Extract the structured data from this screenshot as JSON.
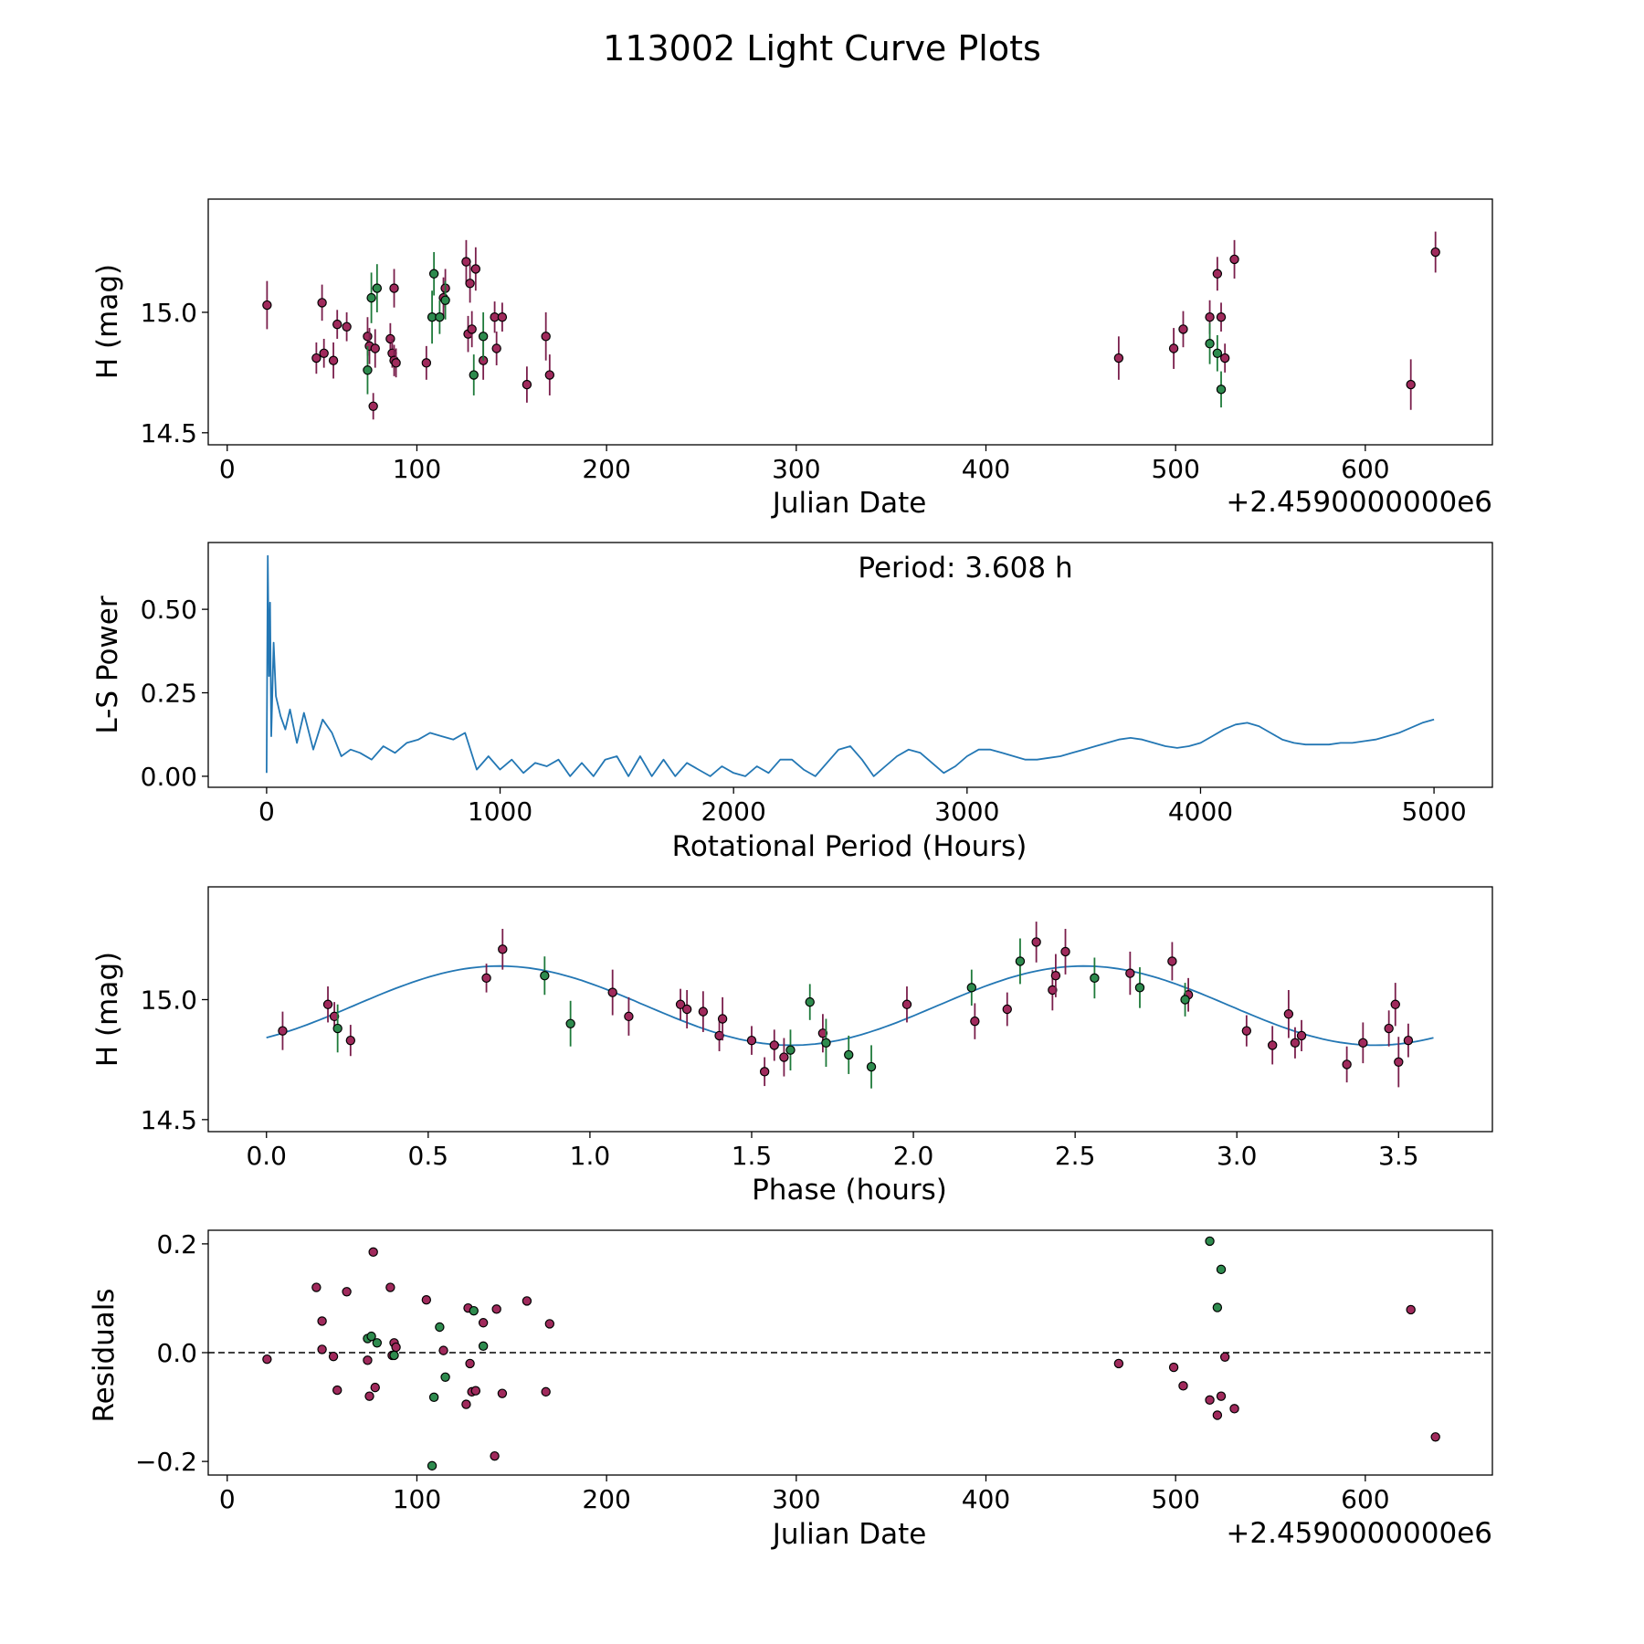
{
  "figure": {
    "title": "113002 Light Curve Plots"
  },
  "colors": {
    "red": "#7a1f4c",
    "red_fill": "#a02a5c",
    "green": "#1e7a3a",
    "green_fill": "#2e8b4e",
    "line": "#2377b4"
  },
  "chart_data": [
    {
      "id": "lightcurve",
      "type": "scatter",
      "xlabel": "Julian Date",
      "ylabel": "H (mag)",
      "offset_text": "+2.4590000000e6",
      "xlim": [
        -10,
        667
      ],
      "ylim": [
        14.45,
        15.47
      ],
      "xticks": [
        0,
        100,
        200,
        300,
        400,
        500,
        600
      ],
      "xtick_labels": [
        "0",
        "100",
        "200",
        "300",
        "400",
        "500",
        "600"
      ],
      "yticks": [
        14.5,
        15.0
      ],
      "ytick_labels": [
        "14.5",
        "15.0"
      ],
      "series": [
        {
          "name": "red",
          "points": [
            [
              21,
              15.03,
              0.2
            ],
            [
              47,
              14.81,
              0.13
            ],
            [
              50,
              15.04,
              0.15
            ],
            [
              51,
              14.83,
              0.12
            ],
            [
              56,
              14.8,
              0.15
            ],
            [
              58,
              14.95,
              0.12
            ],
            [
              63,
              14.94,
              0.12
            ],
            [
              74,
              14.9,
              0.16
            ],
            [
              75,
              14.86,
              0.15
            ],
            [
              77,
              14.61,
              0.11
            ],
            [
              78,
              14.85,
              0.16
            ],
            [
              86,
              14.89,
              0.13
            ],
            [
              87,
              14.83,
              0.12
            ],
            [
              88,
              14.8,
              0.13
            ],
            [
              88,
              15.1,
              0.16
            ],
            [
              89,
              14.79,
              0.12
            ],
            [
              105,
              14.79,
              0.14
            ],
            [
              114,
              15.06,
              0.17
            ],
            [
              115,
              15.1,
              0.16
            ],
            [
              126,
              15.21,
              0.18
            ],
            [
              127,
              14.91,
              0.15
            ],
            [
              128,
              15.12,
              0.16
            ],
            [
              129,
              14.93,
              0.15
            ],
            [
              131,
              15.18,
              0.18
            ],
            [
              135,
              14.8,
              0.16
            ],
            [
              141,
              14.98,
              0.13
            ],
            [
              142,
              14.85,
              0.14
            ],
            [
              145,
              14.98,
              0.12
            ],
            [
              158,
              14.7,
              0.15
            ],
            [
              168,
              14.9,
              0.2
            ],
            [
              170,
              14.74,
              0.17
            ],
            [
              470,
              14.81,
              0.18
            ],
            [
              499,
              14.85,
              0.17
            ],
            [
              504,
              14.93,
              0.15
            ],
            [
              518,
              14.98,
              0.14
            ],
            [
              522,
              15.16,
              0.14
            ],
            [
              524,
              14.98,
              0.12
            ],
            [
              526,
              14.81,
              0.12
            ],
            [
              531,
              15.22,
              0.16
            ],
            [
              624,
              14.7,
              0.21
            ],
            [
              637,
              15.25,
              0.17
            ]
          ]
        },
        {
          "name": "green",
          "points": [
            [
              74,
              14.76,
              0.2
            ],
            [
              76,
              15.06,
              0.21
            ],
            [
              79,
              15.1,
              0.2
            ],
            [
              108,
              14.98,
              0.22
            ],
            [
              109,
              15.16,
              0.18
            ],
            [
              112,
              14.98,
              0.14
            ],
            [
              115,
              15.05,
              0.16
            ],
            [
              130,
              14.74,
              0.17
            ],
            [
              135,
              14.9,
              0.2
            ],
            [
              518,
              14.87,
              0.17
            ],
            [
              522,
              14.83,
              0.15
            ],
            [
              524,
              14.68,
              0.15
            ]
          ]
        }
      ]
    },
    {
      "id": "periodogram",
      "type": "line",
      "xlabel": "Rotational Period (Hours)",
      "ylabel": "L-S Power",
      "annotation": "Period: 3.608 h",
      "xlim": [
        -250,
        5250
      ],
      "ylim": [
        -0.033,
        0.7
      ],
      "xticks": [
        0,
        1000,
        2000,
        3000,
        4000,
        5000
      ],
      "xtick_labels": [
        "0",
        "1000",
        "2000",
        "3000",
        "4000",
        "5000"
      ],
      "yticks": [
        0.0,
        0.25,
        0.5
      ],
      "ytick_labels": [
        "0.00",
        "0.25",
        "0.50"
      ],
      "x": [
        0,
        5,
        10,
        15,
        20,
        30,
        40,
        60,
        80,
        100,
        130,
        160,
        200,
        240,
        280,
        320,
        360,
        400,
        450,
        500,
        550,
        600,
        650,
        700,
        750,
        800,
        850,
        900,
        950,
        1000,
        1050,
        1100,
        1150,
        1200,
        1250,
        1300,
        1350,
        1400,
        1450,
        1500,
        1550,
        1600,
        1650,
        1700,
        1750,
        1800,
        1850,
        1900,
        1950,
        2000,
        2050,
        2100,
        2150,
        2200,
        2250,
        2300,
        2350,
        2400,
        2450,
        2500,
        2550,
        2600,
        2650,
        2700,
        2750,
        2800,
        2850,
        2900,
        2950,
        3000,
        3050,
        3100,
        3150,
        3200,
        3250,
        3300,
        3350,
        3400,
        3450,
        3500,
        3550,
        3600,
        3650,
        3700,
        3750,
        3800,
        3850,
        3900,
        3950,
        4000,
        4050,
        4100,
        4150,
        4200,
        4250,
        4300,
        4350,
        4400,
        4450,
        4500,
        4550,
        4600,
        4650,
        4700,
        4750,
        4800,
        4850,
        4900,
        4950,
        5000
      ],
      "values": [
        0.01,
        0.66,
        0.3,
        0.52,
        0.12,
        0.4,
        0.24,
        0.18,
        0.14,
        0.2,
        0.1,
        0.19,
        0.08,
        0.17,
        0.13,
        0.06,
        0.08,
        0.07,
        0.05,
        0.09,
        0.07,
        0.1,
        0.11,
        0.13,
        0.12,
        0.11,
        0.13,
        0.02,
        0.06,
        0.02,
        0.05,
        0.01,
        0.04,
        0.03,
        0.05,
        0.0,
        0.04,
        0.0,
        0.05,
        0.06,
        0.0,
        0.06,
        0.0,
        0.05,
        0.0,
        0.04,
        0.02,
        0.0,
        0.03,
        0.01,
        0.0,
        0.03,
        0.01,
        0.05,
        0.05,
        0.02,
        0.0,
        0.04,
        0.08,
        0.09,
        0.05,
        0.0,
        0.03,
        0.06,
        0.08,
        0.07,
        0.04,
        0.01,
        0.03,
        0.06,
        0.08,
        0.08,
        0.07,
        0.06,
        0.05,
        0.05,
        0.055,
        0.06,
        0.07,
        0.08,
        0.09,
        0.1,
        0.11,
        0.115,
        0.11,
        0.1,
        0.09,
        0.085,
        0.09,
        0.1,
        0.12,
        0.14,
        0.155,
        0.16,
        0.15,
        0.13,
        0.11,
        0.1,
        0.095,
        0.095,
        0.095,
        0.1,
        0.1,
        0.105,
        0.11,
        0.12,
        0.13,
        0.145,
        0.16,
        0.17
      ]
    },
    {
      "id": "phased",
      "type": "scatter",
      "xlabel": "Phase (hours)",
      "ylabel": "H (mag)",
      "xlim": [
        -0.18,
        3.79
      ],
      "ylim": [
        14.45,
        15.47
      ],
      "xticks": [
        0.0,
        0.5,
        1.0,
        1.5,
        2.0,
        2.5,
        3.0,
        3.5
      ],
      "xtick_labels": [
        "0.0",
        "0.5",
        "1.0",
        "1.5",
        "2.0",
        "2.5",
        "3.0",
        "3.5"
      ],
      "yticks": [
        14.5,
        15.0
      ],
      "ytick_labels": [
        "14.5",
        "15.0"
      ],
      "fit": {
        "name": "model",
        "mean": 14.975,
        "amplitude": 0.165,
        "phase0": 0.27,
        "period_x": 1.805,
        "x_range": [
          0,
          3.608
        ]
      },
      "series": [
        {
          "name": "red",
          "points": [
            [
              0.05,
              14.87,
              0.16
            ],
            [
              0.19,
              14.98,
              0.15
            ],
            [
              0.21,
              14.93,
              0.12
            ],
            [
              0.26,
              14.83,
              0.13
            ],
            [
              0.68,
              15.09,
              0.12
            ],
            [
              0.73,
              15.21,
              0.17
            ],
            [
              1.07,
              15.03,
              0.19
            ],
            [
              1.12,
              14.93,
              0.16
            ],
            [
              1.28,
              14.98,
              0.13
            ],
            [
              1.3,
              14.96,
              0.16
            ],
            [
              1.35,
              14.95,
              0.17
            ],
            [
              1.4,
              14.85,
              0.13
            ],
            [
              1.41,
              14.92,
              0.18
            ],
            [
              1.5,
              14.83,
              0.12
            ],
            [
              1.54,
              14.7,
              0.12
            ],
            [
              1.57,
              14.81,
              0.13
            ],
            [
              1.6,
              14.76,
              0.16
            ],
            [
              1.72,
              14.86,
              0.16
            ],
            [
              1.98,
              14.98,
              0.15
            ],
            [
              2.19,
              14.91,
              0.15
            ],
            [
              2.29,
              14.96,
              0.14
            ],
            [
              2.38,
              15.24,
              0.17
            ],
            [
              2.43,
              15.04,
              0.17
            ],
            [
              2.44,
              15.1,
              0.18
            ],
            [
              2.47,
              15.2,
              0.19
            ],
            [
              2.67,
              15.11,
              0.18
            ],
            [
              2.8,
              15.16,
              0.16
            ],
            [
              2.85,
              15.02,
              0.14
            ],
            [
              3.03,
              14.87,
              0.13
            ],
            [
              3.11,
              14.81,
              0.16
            ],
            [
              3.16,
              14.94,
              0.2
            ],
            [
              3.18,
              14.82,
              0.13
            ],
            [
              3.2,
              14.85,
              0.13
            ],
            [
              3.34,
              14.73,
              0.15
            ],
            [
              3.39,
              14.82,
              0.17
            ],
            [
              3.47,
              14.88,
              0.15
            ],
            [
              3.49,
              14.98,
              0.18
            ],
            [
              3.5,
              14.74,
              0.21
            ],
            [
              3.53,
              14.83,
              0.14
            ]
          ]
        },
        {
          "name": "green",
          "points": [
            [
              0.22,
              14.88,
              0.2
            ],
            [
              0.86,
              15.1,
              0.16
            ],
            [
              0.94,
              14.9,
              0.19
            ],
            [
              1.62,
              14.79,
              0.17
            ],
            [
              1.68,
              14.99,
              0.15
            ],
            [
              1.73,
              14.82,
              0.2
            ],
            [
              1.8,
              14.77,
              0.16
            ],
            [
              1.87,
              14.72,
              0.18
            ],
            [
              2.18,
              15.05,
              0.15
            ],
            [
              2.33,
              15.16,
              0.19
            ],
            [
              2.56,
              15.09,
              0.17
            ],
            [
              2.7,
              15.05,
              0.17
            ],
            [
              2.84,
              15.0,
              0.14
            ]
          ]
        }
      ]
    },
    {
      "id": "residuals",
      "type": "scatter",
      "xlabel": "Julian Date",
      "ylabel": "Residuals",
      "offset_text": "+2.4590000000e6",
      "xlim": [
        -10,
        667
      ],
      "ylim": [
        -0.225,
        0.225
      ],
      "xticks": [
        0,
        100,
        200,
        300,
        400,
        500,
        600
      ],
      "xtick_labels": [
        "0",
        "100",
        "200",
        "300",
        "400",
        "500",
        "600"
      ],
      "yticks": [
        -0.2,
        0.0,
        0.2
      ],
      "ytick_labels": [
        "−0.2",
        "0.0",
        "0.2"
      ],
      "reference_line": 0.0,
      "series": [
        {
          "name": "red",
          "points": [
            [
              21,
              -0.012
            ],
            [
              47,
              0.12
            ],
            [
              50,
              0.058
            ],
            [
              50,
              0.006
            ],
            [
              56,
              -0.007
            ],
            [
              58,
              -0.069
            ],
            [
              63,
              0.112
            ],
            [
              74,
              -0.014
            ],
            [
              75,
              -0.08
            ],
            [
              77,
              0.185
            ],
            [
              78,
              -0.064
            ],
            [
              86,
              0.12
            ],
            [
              87,
              -0.005
            ],
            [
              88,
              0.018
            ],
            [
              89,
              0.01
            ],
            [
              105,
              0.097
            ],
            [
              114,
              0.004
            ],
            [
              126,
              -0.095
            ],
            [
              127,
              0.082
            ],
            [
              128,
              -0.02
            ],
            [
              129,
              -0.072
            ],
            [
              131,
              -0.07
            ],
            [
              135,
              0.055
            ],
            [
              141,
              -0.19
            ],
            [
              142,
              0.08
            ],
            [
              145,
              -0.075
            ],
            [
              158,
              0.095
            ],
            [
              168,
              -0.072
            ],
            [
              170,
              0.053
            ],
            [
              470,
              -0.02
            ],
            [
              499,
              -0.027
            ],
            [
              504,
              -0.061
            ],
            [
              518,
              -0.087
            ],
            [
              522,
              -0.115
            ],
            [
              524,
              -0.08
            ],
            [
              526,
              -0.008
            ],
            [
              531,
              -0.103
            ],
            [
              624,
              0.079
            ],
            [
              637,
              -0.155
            ]
          ]
        },
        {
          "name": "green",
          "points": [
            [
              74,
              0.026
            ],
            [
              76,
              0.03
            ],
            [
              79,
              0.018
            ],
            [
              88,
              -0.005
            ],
            [
              108,
              -0.208
            ],
            [
              109,
              -0.082
            ],
            [
              112,
              0.047
            ],
            [
              115,
              -0.045
            ],
            [
              130,
              0.077
            ],
            [
              135,
              0.012
            ],
            [
              518,
              0.205
            ],
            [
              522,
              0.083
            ],
            [
              524,
              0.153
            ]
          ]
        }
      ]
    }
  ]
}
